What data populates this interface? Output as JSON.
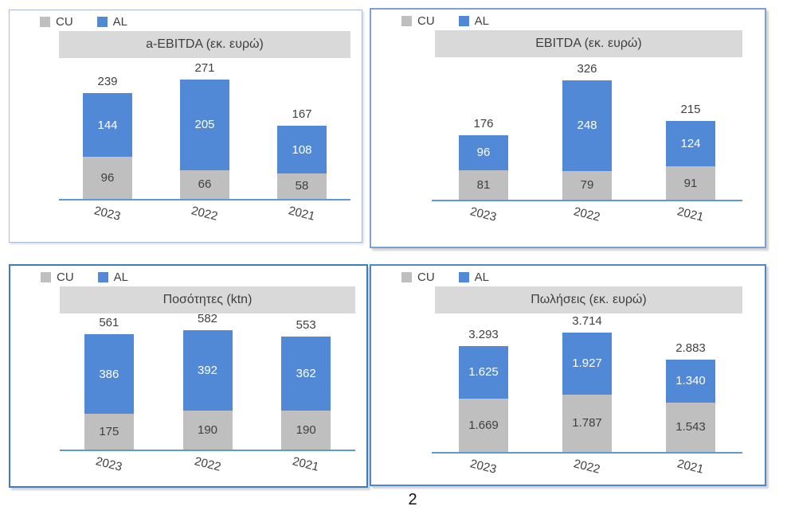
{
  "page_number": "2",
  "legend": {
    "cu": "CU",
    "al": "AL"
  },
  "colors": {
    "cu": "#BFBFBF",
    "al": "#5289D6",
    "title_band": "#D9D9D9",
    "label_dark": "#404040",
    "label_light": "#FFFFFF",
    "axis": "#5B9BD5"
  },
  "chart_data": [
    {
      "type": "bar",
      "stacked": true,
      "title": "a-EBITDA (εκ. ευρώ)",
      "categories": [
        "2023",
        "2022",
        "2021"
      ],
      "series": [
        {
          "name": "CU",
          "values": [
            96,
            66,
            58
          ],
          "labels": [
            "96",
            "66",
            "58"
          ]
        },
        {
          "name": "AL",
          "values": [
            144,
            205,
            108
          ],
          "labels": [
            "144",
            "205",
            "108"
          ]
        }
      ],
      "totals": [
        239,
        271,
        167
      ],
      "total_labels": [
        "239",
        "271",
        "167"
      ],
      "legend_position": "top-left",
      "gridlines": false,
      "value_axis_visible": false
    },
    {
      "type": "bar",
      "stacked": true,
      "title": "EBITDA (εκ. ευρώ)",
      "categories": [
        "2023",
        "2022",
        "2021"
      ],
      "series": [
        {
          "name": "CU",
          "values": [
            81,
            79,
            91
          ],
          "labels": [
            "81",
            "79",
            "91"
          ]
        },
        {
          "name": "AL",
          "values": [
            96,
            248,
            124
          ],
          "labels": [
            "96",
            "248",
            "124"
          ]
        }
      ],
      "totals": [
        176,
        326,
        215
      ],
      "total_labels": [
        "176",
        "326",
        "215"
      ],
      "legend_position": "top-left",
      "gridlines": false,
      "value_axis_visible": false
    },
    {
      "type": "bar",
      "stacked": true,
      "title": "Ποσότητες (ktn)",
      "categories": [
        "2023",
        "2022",
        "2021"
      ],
      "series": [
        {
          "name": "CU",
          "values": [
            175,
            190,
            190
          ],
          "labels": [
            "175",
            "190",
            "190"
          ]
        },
        {
          "name": "AL",
          "values": [
            386,
            392,
            362
          ],
          "labels": [
            "386",
            "392",
            "362"
          ]
        }
      ],
      "totals": [
        561,
        582,
        553
      ],
      "total_labels": [
        "561",
        "582",
        "553"
      ],
      "legend_position": "top-left",
      "gridlines": false,
      "value_axis_visible": false
    },
    {
      "type": "bar",
      "stacked": true,
      "title": "Πωλήσεις (εκ. ευρώ)",
      "categories": [
        "2023",
        "2022",
        "2021"
      ],
      "series": [
        {
          "name": "CU",
          "values": [
            1669,
            1787,
            1543
          ],
          "labels": [
            "1.669",
            "1.787",
            "1.543"
          ]
        },
        {
          "name": "AL",
          "values": [
            1625,
            1927,
            1340
          ],
          "labels": [
            "1.625",
            "1.927",
            "1.340"
          ]
        }
      ],
      "totals": [
        3293,
        3714,
        2883
      ],
      "total_labels": [
        "3.293",
        "3.714",
        "2.883"
      ],
      "legend_position": "top-left",
      "gridlines": false,
      "value_axis_visible": false
    }
  ]
}
